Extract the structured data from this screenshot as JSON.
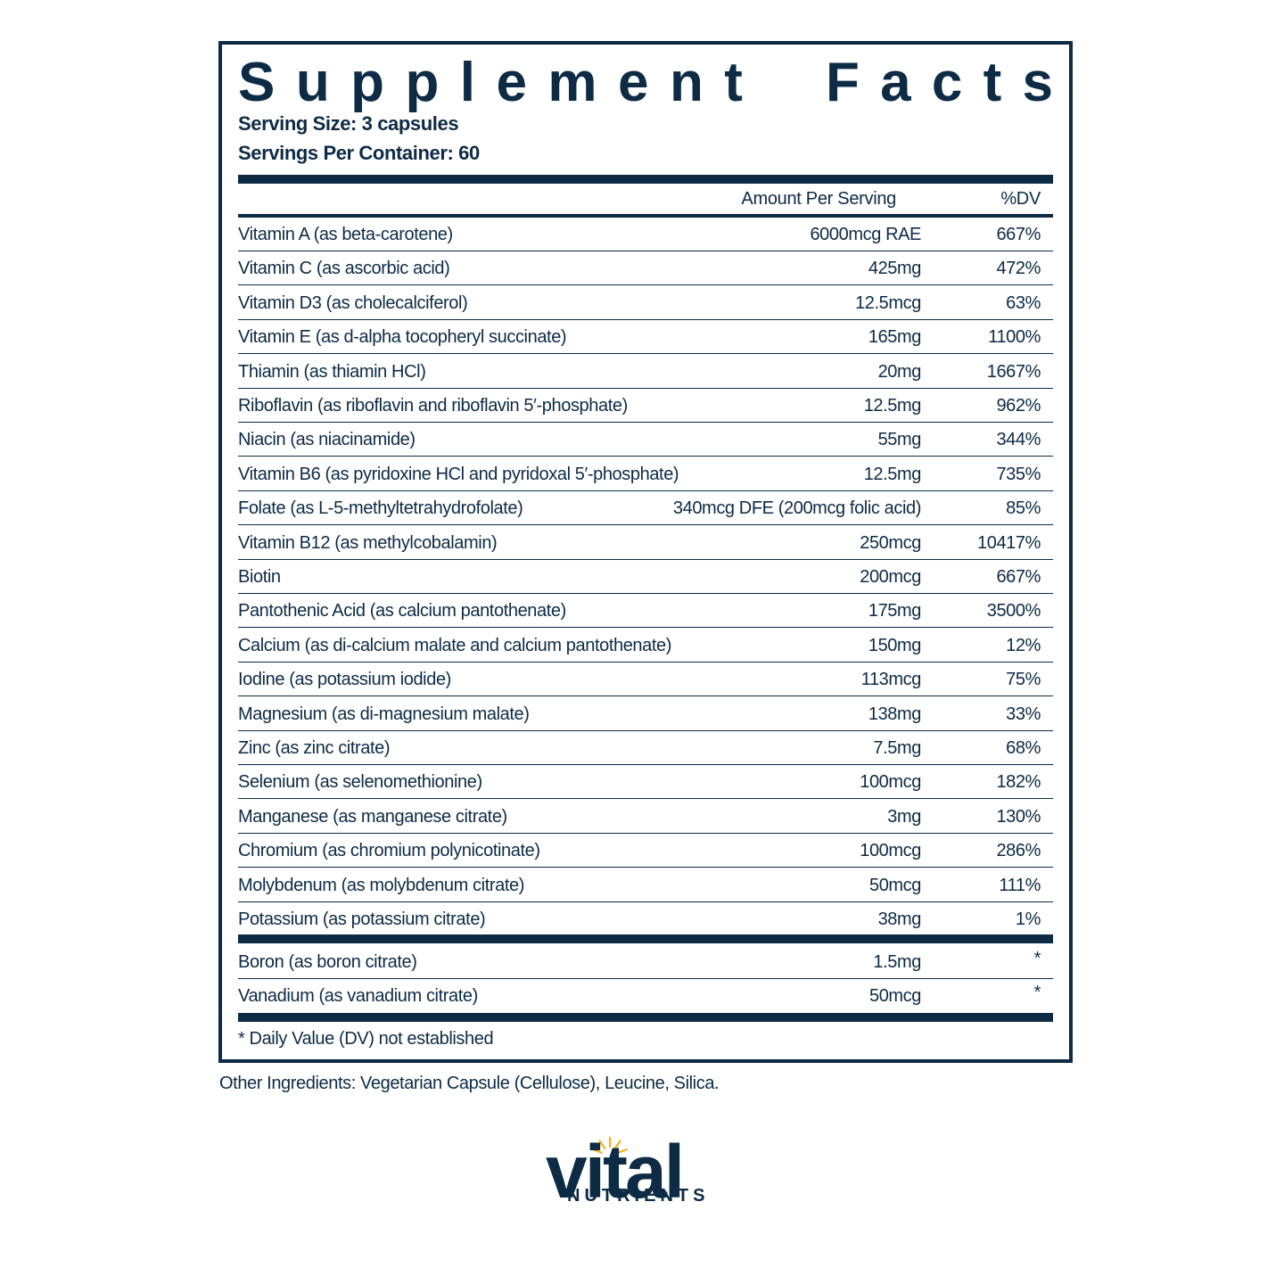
{
  "panel": {
    "title_word_1": "Supplement",
    "title_word_2": "Facts",
    "serving_size": "Serving Size: 3 capsules",
    "servings_per_container": "Servings Per Container: 60",
    "header": {
      "amount": "Amount Per Serving",
      "dv": "%DV"
    },
    "nutrients": [
      {
        "name": "Vitamin A (as beta-carotene)",
        "amount": "6000mcg RAE",
        "dv": "667%"
      },
      {
        "name": "Vitamin C (as ascorbic acid)",
        "amount": "425mg",
        "dv": "472%"
      },
      {
        "name": "Vitamin D3 (as cholecalciferol)",
        "amount": "12.5mcg",
        "dv": "63%"
      },
      {
        "name": "Vitamin E (as d-alpha tocopheryl succinate)",
        "amount": "165mg",
        "dv": "1100%"
      },
      {
        "name": "Thiamin (as thiamin HCl)",
        "amount": "20mg",
        "dv": "1667%"
      },
      {
        "name": "Riboflavin (as riboflavin and riboflavin 5′-phosphate)",
        "amount": "12.5mg",
        "dv": "962%"
      },
      {
        "name": "Niacin (as niacinamide)",
        "amount": "55mg",
        "dv": "344%"
      },
      {
        "name": "Vitamin B6 (as pyridoxine HCl and pyridoxal 5′-phosphate)",
        "amount": "12.5mg",
        "dv": "735%"
      },
      {
        "name": "Folate (as L-5-methyltetrahydrofolate)",
        "amount": "340mcg DFE (200mcg folic acid)",
        "dv": "85%"
      },
      {
        "name": "Vitamin B12 (as methylcobalamin)",
        "amount": "250mcg",
        "dv": "10417%"
      },
      {
        "name": "Biotin",
        "amount": "200mcg",
        "dv": "667%"
      },
      {
        "name": "Pantothenic Acid (as calcium pantothenate)",
        "amount": "175mg",
        "dv": "3500%"
      },
      {
        "name": "Calcium (as di-calcium malate and calcium pantothenate)",
        "amount": "150mg",
        "dv": "12%"
      },
      {
        "name": "Iodine (as potassium iodide)",
        "amount": "113mcg",
        "dv": "75%"
      },
      {
        "name": "Magnesium (as di-magnesium malate)",
        "amount": "138mg",
        "dv": "33%"
      },
      {
        "name": "Zinc (as zinc citrate)",
        "amount": "7.5mg",
        "dv": "68%"
      },
      {
        "name": "Selenium (as selenomethionine)",
        "amount": "100mcg",
        "dv": "182%"
      },
      {
        "name": "Manganese (as manganese citrate)",
        "amount": "3mg",
        "dv": "130%"
      },
      {
        "name": "Chromium (as chromium polynicotinate)",
        "amount": "100mcg",
        "dv": "286%"
      },
      {
        "name": "Molybdenum (as molybdenum citrate)",
        "amount": "50mcg",
        "dv": "111%"
      },
      {
        "name": "Potassium (as potassium citrate)",
        "amount": "38mg",
        "dv": "1%"
      }
    ],
    "other_nutrients": [
      {
        "name": "Boron (as boron citrate)",
        "amount": "1.5mg",
        "dv": "*"
      },
      {
        "name": "Vanadium (as vanadium citrate)",
        "amount": "50mcg",
        "dv": "*"
      }
    ],
    "footnote": "* Daily Value (DV) not established"
  },
  "other_ingredients": "Other Ingredients: Vegetarian Capsule (Cellulose), Leucine, Silica.",
  "logo": {
    "word": "vital",
    "subword": "NUTRIENTS",
    "brand_color": "#0d2b45",
    "sun_color": "#f3b21a"
  }
}
